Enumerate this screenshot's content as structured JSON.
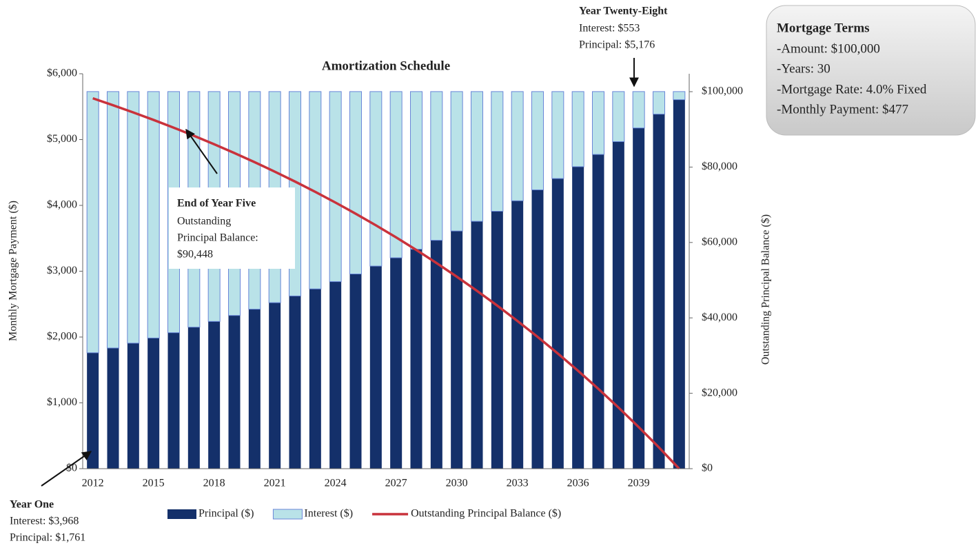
{
  "chart_data": {
    "type": "bar",
    "title": "Amortization Schedule",
    "ylabel": "Monthly Mortgage Payment ($)",
    "y2label": "Outstanding Principal Balance ($)",
    "categories": [
      "2012",
      null,
      null,
      "2015",
      null,
      null,
      "2018",
      null,
      null,
      "2021",
      null,
      null,
      "2024",
      null,
      null,
      "2027",
      null,
      null,
      "2030",
      null,
      null,
      "2033",
      null,
      null,
      "2036",
      null,
      null,
      "2039",
      null,
      null
    ],
    "series": [
      {
        "name": "Principal ($)",
        "color": "#14306a",
        "kind": "bar",
        "values": [
          1761,
          1833,
          1907,
          1985,
          2066,
          2150,
          2237,
          2328,
          2423,
          2522,
          2624,
          2731,
          2842,
          2958,
          3078,
          3204,
          3334,
          3470,
          3611,
          3758,
          3911,
          4070,
          4236,
          4408,
          4588,
          4774,
          4969,
          5176,
          5386,
          5606
        ]
      },
      {
        "name": "Interest ($)",
        "color": "#b9e2e8",
        "edge": "#6a86d8",
        "kind": "bar",
        "values": [
          3968,
          3896,
          3822,
          3744,
          3663,
          3579,
          3492,
          3401,
          3306,
          3207,
          3105,
          2998,
          2887,
          2771,
          2651,
          2525,
          2395,
          2259,
          2118,
          1971,
          1818,
          1659,
          1493,
          1321,
          1141,
          955,
          760,
          553,
          343,
          123
        ]
      },
      {
        "name": "Outstanding Principal Balance ($)",
        "color": "#c9323b",
        "kind": "line",
        "axis": "y2",
        "values": [
          98239,
          96406,
          94499,
          92514,
          90448,
          88298,
          86061,
          83733,
          81310,
          78788,
          76164,
          73433,
          70591,
          67633,
          64555,
          61351,
          58017,
          54547,
          50936,
          47178,
          43267,
          39197,
          34961,
          30553,
          25965,
          21191,
          16222,
          11046,
          5660,
          0
        ]
      }
    ],
    "ylim": [
      0,
      6000
    ],
    "yticks": [
      {
        "value": 0,
        "label": "$0"
      },
      {
        "value": 1000,
        "label": "$1,000"
      },
      {
        "value": 2000,
        "label": "$2,000"
      },
      {
        "value": 3000,
        "label": "$3,000"
      },
      {
        "value": 4000,
        "label": "$4,000"
      },
      {
        "value": 5000,
        "label": "$5,000"
      },
      {
        "value": 6000,
        "label": "$6,000"
      }
    ],
    "y2lim": [
      0,
      104753
    ],
    "y2ticks": [
      {
        "value": 0,
        "label": "$0"
      },
      {
        "value": 20000,
        "label": "$20,000"
      },
      {
        "value": 40000,
        "label": "$40,000"
      },
      {
        "value": 60000,
        "label": "$60,000"
      },
      {
        "value": 80000,
        "label": "$80,000"
      },
      {
        "value": 100000,
        "label": "$100,000"
      }
    ],
    "legend": "bottom",
    "annotations": [
      {
        "title": "Year One",
        "lines": [
          "Interest: $3,968",
          "Principal: $1,761"
        ]
      },
      {
        "title": "End of Year Five",
        "lines": [
          "Outstanding",
          "Principal Balance:",
          "$90,448"
        ]
      },
      {
        "title": "Year Twenty-Eight",
        "lines": [
          "Interest: $553",
          "Principal: $5,176"
        ]
      }
    ],
    "terms": {
      "title": "Mortgage Terms",
      "lines": [
        "-Amount: $100,000",
        "-Years: 30",
        "-Mortgage Rate: 4.0% Fixed",
        "-Monthly Payment: $477"
      ]
    }
  }
}
